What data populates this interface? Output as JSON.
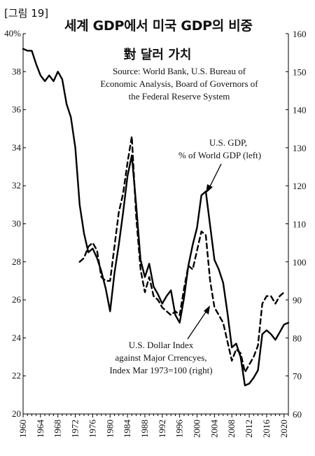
{
  "figure": {
    "label": "[그림 19]",
    "title": "세계 GDP에서 미국 GDP의 비중",
    "subtitle": "對 달러 가치"
  },
  "chart_data": {
    "type": "line",
    "title": "세계 GDP에서 미국 GDP의 비중 對 달러 가치",
    "source": [
      "Source: World Bank, U.S. Bureau of",
      "Economic Analysis, Board of Governors of",
      "the Federal Reserve System"
    ],
    "x_ticks": [
      "1960",
      "1964",
      "1968",
      "1972",
      "1976",
      "1980",
      "1984",
      "1988",
      "1992",
      "1996",
      "2000",
      "2004",
      "2008",
      "2012",
      "2016",
      "2020"
    ],
    "xlim": [
      1960,
      2021
    ],
    "y_left": {
      "ticks": [
        "40%",
        "38",
        "36",
        "34",
        "32",
        "30",
        "28",
        "26",
        "24",
        "22",
        "20"
      ],
      "ylim": [
        20,
        40
      ]
    },
    "y_right": {
      "ticks": [
        "160",
        "150",
        "140",
        "130",
        "120",
        "110",
        "100",
        "90",
        "80",
        "70",
        "60"
      ],
      "ylim": [
        60,
        160
      ]
    },
    "legend": "none",
    "grid": false,
    "series": [
      {
        "name": "U.S. GDP, % of World GDP (left)",
        "axis": "left",
        "style": "solid",
        "color": "#000000",
        "points": [
          [
            1960,
            39.2
          ],
          [
            1961,
            39.1
          ],
          [
            1962,
            39.1
          ],
          [
            1963,
            38.4
          ],
          [
            1964,
            37.8
          ],
          [
            1965,
            37.5
          ],
          [
            1966,
            37.8
          ],
          [
            1967,
            37.5
          ],
          [
            1968,
            38.0
          ],
          [
            1969,
            37.6
          ],
          [
            1970,
            36.3
          ],
          [
            1971,
            35.6
          ],
          [
            1972,
            34.0
          ],
          [
            1973,
            31.0
          ],
          [
            1974,
            29.5
          ],
          [
            1975,
            28.5
          ],
          [
            1976,
            28.7
          ],
          [
            1977,
            28.2
          ],
          [
            1978,
            27.5
          ],
          [
            1979,
            26.6
          ],
          [
            1980,
            25.4
          ],
          [
            1981,
            27.4
          ],
          [
            1982,
            28.9
          ],
          [
            1983,
            30.6
          ],
          [
            1984,
            32.5
          ],
          [
            1985,
            33.6
          ],
          [
            1986,
            31.0
          ],
          [
            1987,
            28.1
          ],
          [
            1988,
            27.2
          ],
          [
            1989,
            27.9
          ],
          [
            1990,
            26.7
          ],
          [
            1991,
            26.3
          ],
          [
            1992,
            25.8
          ],
          [
            1993,
            26.2
          ],
          [
            1994,
            26.5
          ],
          [
            1995,
            25.2
          ],
          [
            1996,
            24.8
          ],
          [
            1997,
            26.1
          ],
          [
            1998,
            27.8
          ],
          [
            1999,
            28.9
          ],
          [
            2000,
            29.8
          ],
          [
            2001,
            31.5
          ],
          [
            2002,
            31.7
          ],
          [
            2003,
            29.9
          ],
          [
            2004,
            28.1
          ],
          [
            2005,
            27.6
          ],
          [
            2006,
            26.9
          ],
          [
            2007,
            25.3
          ],
          [
            2008,
            23.5
          ],
          [
            2009,
            23.7
          ],
          [
            2010,
            23.0
          ],
          [
            2011,
            21.5
          ],
          [
            2012,
            21.6
          ],
          [
            2013,
            21.9
          ],
          [
            2014,
            22.3
          ],
          [
            2015,
            24.2
          ],
          [
            2016,
            24.4
          ],
          [
            2017,
            24.2
          ],
          [
            2018,
            23.9
          ],
          [
            2019,
            24.3
          ],
          [
            2020,
            24.7
          ],
          [
            2021,
            24.8
          ]
        ]
      },
      {
        "name": "U.S. Dollar Index against Major Crrencyes, Index Mar 1973=100 (right)",
        "axis": "right",
        "style": "dashed",
        "color": "#000000",
        "points": [
          [
            1973,
            100
          ],
          [
            1974,
            101
          ],
          [
            1975,
            104
          ],
          [
            1976,
            105
          ],
          [
            1977,
            103
          ],
          [
            1978,
            96
          ],
          [
            1979,
            95
          ],
          [
            1980,
            95
          ],
          [
            1981,
            104
          ],
          [
            1982,
            113
          ],
          [
            1983,
            118
          ],
          [
            1984,
            126
          ],
          [
            1985,
            133
          ],
          [
            1986,
            112
          ],
          [
            1987,
            98
          ],
          [
            1988,
            92
          ],
          [
            1989,
            96
          ],
          [
            1990,
            91
          ],
          [
            1991,
            90
          ],
          [
            1992,
            88
          ],
          [
            1993,
            87
          ],
          [
            1994,
            86
          ],
          [
            1995,
            87
          ],
          [
            1996,
            86
          ],
          [
            1997,
            93
          ],
          [
            1998,
            99
          ],
          [
            1999,
            98
          ],
          [
            2000,
            103
          ],
          [
            2001,
            108
          ],
          [
            2002,
            107
          ],
          [
            2003,
            95
          ],
          [
            2004,
            88
          ],
          [
            2005,
            86
          ],
          [
            2006,
            84
          ],
          [
            2007,
            79
          ],
          [
            2008,
            74
          ],
          [
            2009,
            77
          ],
          [
            2010,
            76
          ],
          [
            2011,
            71
          ],
          [
            2012,
            73
          ],
          [
            2013,
            75
          ],
          [
            2014,
            78
          ],
          [
            2015,
            89
          ],
          [
            2016,
            91
          ],
          [
            2017,
            91
          ],
          [
            2018,
            89
          ],
          [
            2019,
            91
          ],
          [
            2020,
            92
          ]
        ]
      }
    ],
    "annotations": [
      {
        "target": "series-0",
        "lines": [
          "U.S. GDP,",
          "% of World GDP (left)"
        ]
      },
      {
        "target": "series-1",
        "lines": [
          "U.S. Dollar Index",
          "against Major Crrencyes,",
          "Index Mar 1973=100 (right)"
        ]
      }
    ]
  }
}
